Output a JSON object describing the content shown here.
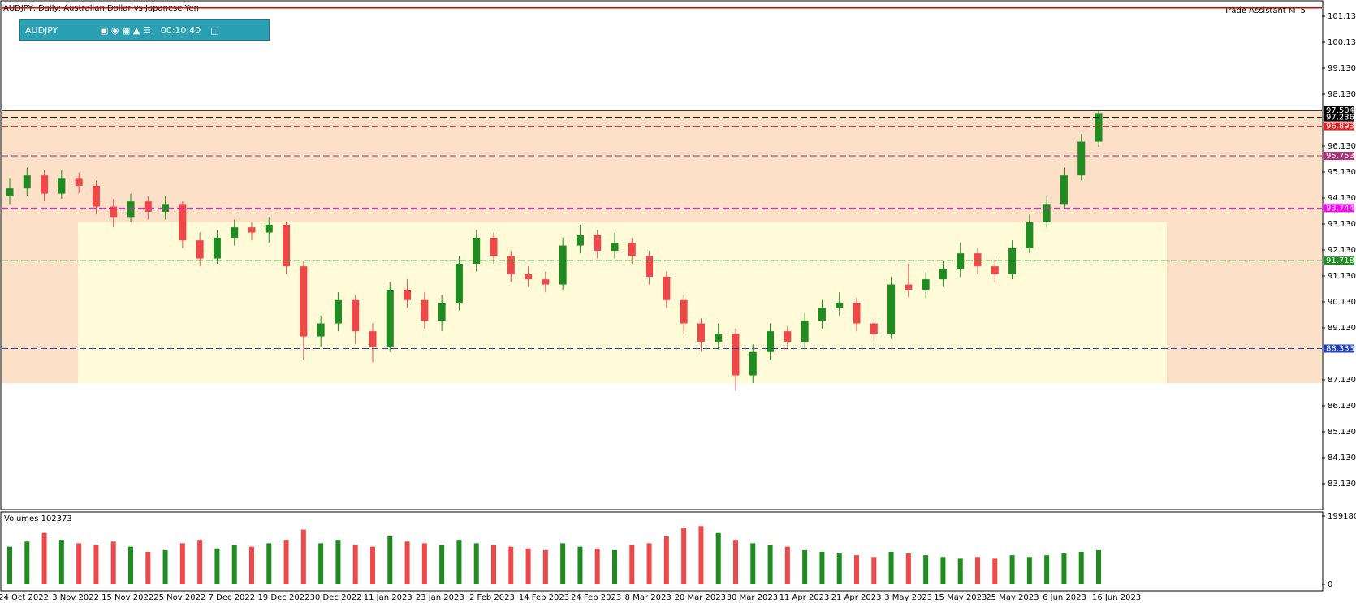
{
  "chart_data": {
    "type": "candlestick",
    "title": "AUDJPY, Daily:  Australian Dollar vs Japanese Yen",
    "toolbar": {
      "symbol": "AUDJPY",
      "timer": "00:10:40"
    },
    "assistant": "Trade Assistant MT5",
    "ylim": [
      82.16,
      101.63
    ],
    "yticks": [
      {
        "value": 83.13,
        "label": "83.130"
      },
      {
        "value": 84.13,
        "label": "84.130"
      },
      {
        "value": 85.13,
        "label": "85.130"
      },
      {
        "value": 86.13,
        "label": "86.130"
      },
      {
        "value": 87.13,
        "label": "87.130"
      },
      {
        "value": 89.13,
        "label": "89.130"
      },
      {
        "value": 90.13,
        "label": "90.130"
      },
      {
        "value": 91.13,
        "label": "91.130"
      },
      {
        "value": 92.13,
        "label": "92.130"
      },
      {
        "value": 93.13,
        "label": "93.130"
      },
      {
        "value": 94.13,
        "label": "94.130"
      },
      {
        "value": 95.13,
        "label": "95.130"
      },
      {
        "value": 96.13,
        "label": "96.130"
      },
      {
        "value": 98.13,
        "label": "98.130"
      },
      {
        "value": 99.13,
        "label": "99.130"
      },
      {
        "value": 100.13,
        "label": "100.130"
      },
      {
        "value": 101.13,
        "label": "101.130"
      }
    ],
    "x_labels": [
      "24 Oct 2022",
      "3 Nov 2022",
      "15 Nov 2022",
      "25 Nov 2022",
      "7 Dec 2022",
      "19 Dec 2022",
      "30 Dec 2022",
      "11 Jan 2023",
      "23 Jan 2023",
      "2 Feb 2023",
      "14 Feb 2023",
      "24 Feb 2023",
      "8 Mar 2023",
      "20 Mar 2023",
      "30 Mar 2023",
      "11 Apr 2023",
      "21 Apr 2023",
      "3 May 2023",
      "15 May 2023",
      "25 May 2023",
      "6 Jun 2023",
      "16 Jun 2023"
    ],
    "up_color": "#1e8c1e",
    "down_color": "#f04848",
    "candles": [
      [
        94.2,
        94.9,
        93.9,
        94.5
      ],
      [
        94.5,
        95.3,
        94.2,
        95.0
      ],
      [
        95.0,
        95.2,
        94.0,
        94.3
      ],
      [
        94.3,
        95.2,
        94.1,
        94.9
      ],
      [
        94.9,
        95.1,
        94.3,
        94.6
      ],
      [
        94.6,
        94.8,
        93.5,
        93.8
      ],
      [
        93.8,
        94.1,
        93.0,
        93.4
      ],
      [
        93.4,
        94.3,
        93.2,
        94.0
      ],
      [
        94.0,
        94.2,
        93.3,
        93.6
      ],
      [
        93.6,
        94.2,
        93.3,
        93.9
      ],
      [
        93.9,
        94.0,
        92.2,
        92.5
      ],
      [
        92.5,
        92.8,
        91.5,
        91.8
      ],
      [
        91.8,
        92.9,
        91.6,
        92.6
      ],
      [
        92.6,
        93.3,
        92.3,
        93.0
      ],
      [
        93.0,
        93.2,
        92.5,
        92.8
      ],
      [
        92.8,
        93.4,
        92.4,
        93.1
      ],
      [
        93.1,
        93.2,
        91.2,
        91.5
      ],
      [
        91.5,
        91.7,
        87.9,
        88.8
      ],
      [
        88.8,
        89.6,
        88.4,
        89.3
      ],
      [
        89.3,
        90.5,
        89.0,
        90.2
      ],
      [
        90.2,
        90.4,
        88.5,
        89.0
      ],
      [
        89.0,
        89.3,
        87.8,
        88.4
      ],
      [
        88.4,
        90.9,
        88.2,
        90.6
      ],
      [
        90.6,
        91.0,
        89.9,
        90.2
      ],
      [
        90.2,
        90.5,
        89.1,
        89.4
      ],
      [
        89.4,
        90.4,
        89.0,
        90.1
      ],
      [
        90.1,
        91.9,
        89.8,
        91.6
      ],
      [
        91.6,
        92.9,
        91.3,
        92.6
      ],
      [
        92.6,
        92.8,
        91.6,
        91.9
      ],
      [
        91.9,
        92.1,
        90.9,
        91.2
      ],
      [
        91.2,
        91.5,
        90.7,
        91.0
      ],
      [
        91.0,
        91.3,
        90.5,
        90.8
      ],
      [
        90.8,
        92.6,
        90.6,
        92.3
      ],
      [
        92.3,
        93.1,
        92.0,
        92.7
      ],
      [
        92.7,
        92.9,
        91.8,
        92.1
      ],
      [
        92.1,
        92.8,
        91.8,
        92.4
      ],
      [
        92.4,
        92.6,
        91.6,
        91.9
      ],
      [
        91.9,
        92.1,
        90.8,
        91.1
      ],
      [
        91.1,
        91.3,
        89.9,
        90.2
      ],
      [
        90.2,
        90.4,
        88.9,
        89.3
      ],
      [
        89.3,
        89.5,
        88.2,
        88.6
      ],
      [
        88.6,
        89.3,
        88.3,
        88.9
      ],
      [
        88.9,
        89.1,
        86.7,
        87.3
      ],
      [
        87.3,
        88.5,
        87.0,
        88.2
      ],
      [
        88.2,
        89.3,
        87.9,
        89.0
      ],
      [
        89.0,
        89.2,
        88.3,
        88.6
      ],
      [
        88.6,
        89.7,
        88.4,
        89.4
      ],
      [
        89.4,
        90.2,
        89.1,
        89.9
      ],
      [
        89.9,
        90.5,
        89.6,
        90.1
      ],
      [
        90.1,
        90.3,
        89.0,
        89.3
      ],
      [
        89.3,
        89.5,
        88.6,
        88.9
      ],
      [
        88.9,
        91.1,
        88.7,
        90.8
      ],
      [
        90.8,
        91.6,
        90.3,
        90.6
      ],
      [
        90.6,
        91.3,
        90.3,
        91.0
      ],
      [
        91.0,
        91.7,
        90.7,
        91.4
      ],
      [
        91.4,
        92.4,
        91.1,
        92.0
      ],
      [
        92.0,
        92.2,
        91.2,
        91.5
      ],
      [
        91.5,
        91.8,
        90.9,
        91.2
      ],
      [
        91.2,
        92.5,
        91.0,
        92.2
      ],
      [
        92.2,
        93.5,
        92.0,
        93.2
      ],
      [
        93.2,
        94.2,
        93.0,
        93.9
      ],
      [
        93.9,
        95.3,
        93.7,
        95.0
      ],
      [
        95.0,
        96.6,
        94.8,
        96.3
      ],
      [
        96.3,
        97.5,
        96.1,
        97.4
      ]
    ],
    "levels": [
      {
        "value": 97.504,
        "color": "#000000",
        "dashed": false
      },
      {
        "value": 97.236,
        "color": "#000000",
        "dashed": true
      },
      {
        "value": 96.893,
        "color": "#e02020",
        "dashed": true
      },
      {
        "value": 95.753,
        "color": "#b0307a",
        "dashed": true
      },
      {
        "value": 93.744,
        "color": "#ff00ff",
        "dashed": true
      },
      {
        "value": 91.718,
        "color": "#1e8c1e",
        "dashed": true
      },
      {
        "value": 88.333,
        "color": "#2040c0",
        "dashed": true
      }
    ],
    "top_line": 101.45,
    "zones": [
      {
        "from": 97.504,
        "to": 87.0,
        "color": "#fde0c8"
      },
      {
        "from": 93.2,
        "to": 87.0,
        "color": "#fffbd8"
      }
    ],
    "volume_title": "Volumes 102373",
    "vol_ylim": [
      -14200,
      208700
    ],
    "vol_yticks": [
      0,
      199180
    ],
    "volumes": [
      110000,
      125000,
      150000,
      130000,
      120000,
      115000,
      125000,
      110000,
      95000,
      100000,
      120000,
      130000,
      105000,
      115000,
      110000,
      120000,
      130000,
      160000,
      120000,
      130000,
      115000,
      110000,
      140000,
      125000,
      120000,
      115000,
      130000,
      120000,
      115000,
      110000,
      105000,
      100000,
      120000,
      110000,
      105000,
      100000,
      115000,
      120000,
      140000,
      165000,
      170000,
      150000,
      130000,
      120000,
      115000,
      110000,
      100000,
      95000,
      90000,
      85000,
      80000,
      95000,
      90000,
      85000,
      80000,
      75000,
      80000,
      75000,
      85000,
      80000,
      85000,
      90000,
      95000,
      100000
    ]
  }
}
